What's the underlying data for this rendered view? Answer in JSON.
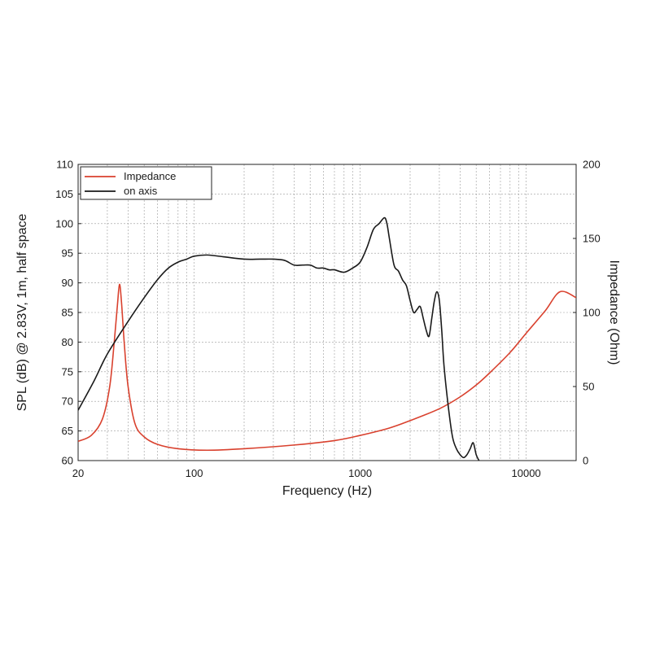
{
  "chart_data": {
    "type": "line",
    "xlabel": "Frequency (Hz)",
    "ylabel": "SPL (dB) @ 2.83V, 1m, half space",
    "y2label": "Impedance (Ohm)",
    "xscale": "log",
    "xlim": [
      20,
      20000
    ],
    "ylim": [
      60,
      110
    ],
    "y2lim": [
      0,
      200
    ],
    "x_ticks": [
      20,
      100,
      1000,
      10000
    ],
    "x_tick_labels": [
      "20",
      "100",
      "1000",
      "10000"
    ],
    "y_ticks": [
      60,
      65,
      70,
      75,
      80,
      85,
      90,
      95,
      100,
      105,
      110
    ],
    "y_tick_labels": [
      "60",
      "65",
      "70",
      "75",
      "80",
      "85",
      "90",
      "95",
      "100",
      "105",
      "110"
    ],
    "y2_ticks": [
      0,
      50,
      100,
      150,
      200
    ],
    "y2_tick_labels": [
      "0",
      "50",
      "100",
      "150",
      "200"
    ],
    "grid": true,
    "legend_position": "top-left",
    "series": [
      {
        "name": "Impedance",
        "axis": "right",
        "color": "#d9412e",
        "x": [
          20,
          24,
          28,
          31,
          33,
          34.5,
          35.5,
          36.5,
          38,
          40,
          44,
          50,
          60,
          80,
          120,
          200,
          400,
          700,
          1000,
          1500,
          2000,
          3000,
          4000,
          5000,
          6000,
          8000,
          10000,
          13000,
          16000,
          20000
        ],
        "values": [
          13,
          17,
          28,
          50,
          80,
          105,
          119,
          107,
          78,
          50,
          25,
          16,
          11,
          8,
          7,
          8,
          10.5,
          13.5,
          17,
          22,
          27,
          35,
          43,
          51,
          59,
          73,
          86,
          101,
          114,
          110
        ]
      },
      {
        "name": "on axis",
        "axis": "left",
        "color": "#1a1a1a",
        "x": [
          20,
          25,
          30,
          40,
          50,
          60,
          70,
          80,
          90,
          100,
          120,
          150,
          200,
          250,
          300,
          350,
          400,
          450,
          500,
          550,
          600,
          650,
          700,
          800,
          900,
          1000,
          1100,
          1200,
          1300,
          1400,
          1450,
          1500,
          1600,
          1700,
          1800,
          1900,
          2000,
          2100,
          2200,
          2300,
          2400,
          2500,
          2600,
          2700,
          2800,
          2900,
          3000,
          3100,
          3200,
          3400,
          3600,
          3800,
          4000,
          4200,
          4400,
          4600,
          4800,
          5000,
          5200
        ],
        "values": [
          68.5,
          73.5,
          78,
          83.5,
          87.5,
          90.5,
          92.5,
          93.5,
          94,
          94.5,
          94.7,
          94.4,
          94,
          94,
          94,
          93.8,
          93,
          93,
          93,
          92.5,
          92.5,
          92.2,
          92.2,
          91.8,
          92.5,
          93.5,
          96,
          99,
          100,
          101,
          100,
          97.5,
          93,
          92,
          90.5,
          89.5,
          87,
          85,
          85.5,
          86,
          84,
          82,
          81,
          84,
          87,
          88.5,
          87,
          82,
          76,
          69,
          64,
          62,
          61,
          60.5,
          61,
          62,
          63,
          61,
          60
        ]
      }
    ]
  }
}
